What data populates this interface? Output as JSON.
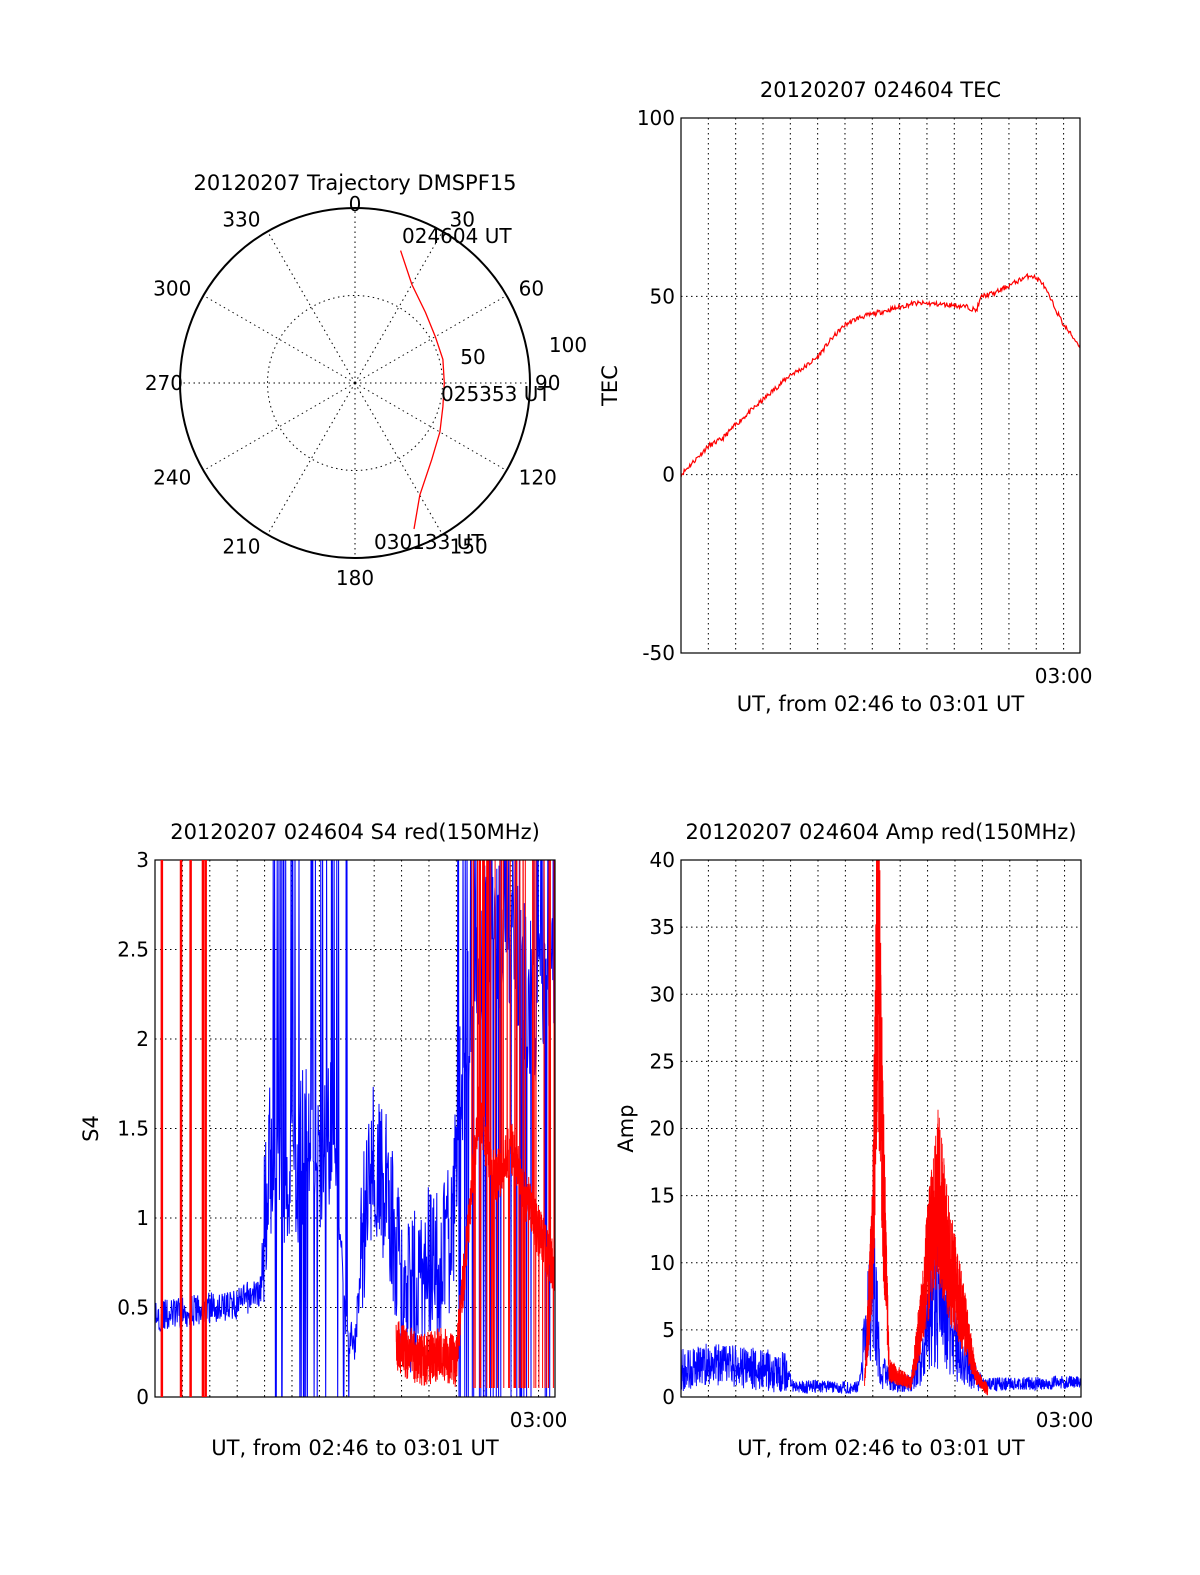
{
  "chart_data": [
    {
      "type": "polar",
      "id": "trajectory",
      "title": "20120207 Trajectory DMSPF15",
      "angle_labels": [
        "0",
        "30",
        "60",
        "90",
        "120",
        "150",
        "180",
        "210",
        "240",
        "270",
        "300",
        "330"
      ],
      "radius_labels": [
        "50",
        "100"
      ],
      "rlim": [
        0,
        100
      ],
      "series": [
        {
          "color": "#ff0000",
          "points": [
            {
              "az": 19,
              "r": 80
            },
            {
              "az": 30,
              "r": 65
            },
            {
              "az": 45,
              "r": 57
            },
            {
              "az": 60,
              "r": 53
            },
            {
              "az": 75,
              "r": 52
            },
            {
              "az": 90,
              "r": 51
            },
            {
              "az": 105,
              "r": 52
            },
            {
              "az": 120,
              "r": 56
            },
            {
              "az": 135,
              "r": 62
            },
            {
              "az": 150,
              "r": 74
            },
            {
              "az": 158,
              "r": 90
            }
          ]
        }
      ],
      "annotations": [
        {
          "text": "024604 UT",
          "az": 19,
          "r": 80
        },
        {
          "text": "025353 UT",
          "az": 90,
          "r": 51
        },
        {
          "text": "030133 UT",
          "az": 158,
          "r": 90
        }
      ]
    },
    {
      "type": "line",
      "id": "tec",
      "title": "20120207 024604 TEC",
      "ylabel": "TEC",
      "xlabel": "UT, from 02:46 to 03:01 UT",
      "x_tick_labels": [
        "03:00"
      ],
      "ylim": [
        -50,
        100
      ],
      "yticks": [
        -50,
        0,
        50,
        100
      ],
      "grid": true,
      "series": [
        {
          "color": "#ff0000",
          "points": [
            [
              0,
              0
            ],
            [
              0.5,
              4
            ],
            [
              1,
              8
            ],
            [
              1.5,
              10
            ],
            [
              2,
              14
            ],
            [
              3,
              21
            ],
            [
              4,
              28
            ],
            [
              4.5,
              30
            ],
            [
              5,
              33
            ],
            [
              5.5,
              38
            ],
            [
              6,
              42
            ],
            [
              6.5,
              44
            ],
            [
              7,
              45
            ],
            [
              8,
              47
            ],
            [
              8.5,
              48
            ],
            [
              9,
              48
            ],
            [
              10,
              47.5
            ],
            [
              10.5,
              47
            ],
            [
              10.8,
              46
            ],
            [
              11,
              50
            ],
            [
              11.5,
              51
            ],
            [
              12,
              53
            ],
            [
              12.5,
              55
            ],
            [
              12.8,
              56
            ],
            [
              13.2,
              54
            ],
            [
              13.6,
              48
            ],
            [
              14,
              42
            ],
            [
              14.6,
              36
            ]
          ]
        }
      ]
    },
    {
      "type": "line",
      "id": "s4",
      "title": "20120207 024604 S4 red(150MHz)",
      "ylabel": "S4",
      "xlabel": "UT, from 02:46 to 03:01 UT",
      "x_tick_labels": [
        "03:00"
      ],
      "ylim": [
        0,
        3
      ],
      "yticks": [
        "0",
        "0.5",
        "1",
        "1.5",
        "2",
        "2.5",
        "3"
      ],
      "grid": true,
      "series": [
        {
          "color": "#0000ff",
          "points": [
            [
              0,
              0.45
            ],
            [
              1,
              0.47
            ],
            [
              2,
              0.5
            ],
            [
              3,
              0.52
            ],
            [
              3.9,
              0.6
            ],
            [
              4.1,
              1.3
            ],
            [
              4.5,
              1.4
            ],
            [
              4.9,
              1.2
            ],
            [
              5.3,
              1.3
            ],
            [
              5.6,
              1.6
            ],
            [
              6,
              1.2
            ],
            [
              6.5,
              1.5
            ],
            [
              7,
              0.35
            ],
            [
              7.3,
              0.3
            ],
            [
              7.6,
              0.9
            ],
            [
              8,
              1.4
            ],
            [
              8.5,
              1.1
            ],
            [
              9,
              0.6
            ],
            [
              9.3,
              0.55
            ],
            [
              9.8,
              0.7
            ],
            [
              10.2,
              0.75
            ],
            [
              10.8,
              0.85
            ],
            [
              11.2,
              1.8
            ],
            [
              11.6,
              2.4
            ],
            [
              12.2,
              2.6
            ],
            [
              13,
              2.5
            ],
            [
              13.8,
              2.2
            ],
            [
              14.6,
              2.3
            ]
          ]
        },
        {
          "color": "#ff0000",
          "points": [
            [
              8.8,
              0.3
            ],
            [
              9.2,
              0.25
            ],
            [
              9.8,
              0.2
            ],
            [
              10.4,
              0.25
            ],
            [
              11,
              0.2
            ],
            [
              11.4,
              0.9
            ],
            [
              11.8,
              1.6
            ],
            [
              12.4,
              1.2
            ],
            [
              13,
              1.4
            ],
            [
              13.8,
              1.0
            ],
            [
              14.6,
              0.7
            ]
          ]
        }
      ]
    },
    {
      "type": "line",
      "id": "amp",
      "title": "20120207 024604 Amp red(150MHz)",
      "ylabel": "Amp",
      "xlabel": "UT, from 02:46 to 03:01 UT",
      "x_tick_labels": [
        "03:00"
      ],
      "ylim": [
        0,
        40
      ],
      "yticks": [
        0,
        5,
        10,
        15,
        20,
        25,
        30,
        35,
        40
      ],
      "grid": true,
      "series": [
        {
          "color": "#0000ff",
          "points": [
            [
              0,
              2
            ],
            [
              1,
              2.5
            ],
            [
              2,
              2.3
            ],
            [
              3,
              2
            ],
            [
              3.9,
              1.8
            ],
            [
              4.1,
              0.7
            ],
            [
              5,
              0.8
            ],
            [
              6,
              0.7
            ],
            [
              6.5,
              0.8
            ],
            [
              6.7,
              4
            ],
            [
              7,
              10
            ],
            [
              7.3,
              2
            ],
            [
              7.8,
              0.8
            ],
            [
              8.4,
              1.2
            ],
            [
              8.8,
              3
            ],
            [
              9.2,
              7
            ],
            [
              9.6,
              7
            ],
            [
              10,
              4
            ],
            [
              10.6,
              2
            ],
            [
              11,
              0.9
            ],
            [
              12,
              1
            ],
            [
              13,
              1
            ],
            [
              14,
              1.1
            ],
            [
              14.6,
              1.2
            ]
          ]
        },
        {
          "color": "#ff0000",
          "points": [
            [
              6.7,
              1
            ],
            [
              7,
              12
            ],
            [
              7.2,
              36
            ],
            [
              7.35,
              18
            ],
            [
              7.6,
              2
            ],
            [
              8.4,
              1
            ],
            [
              8.7,
              5
            ],
            [
              9,
              10
            ],
            [
              9.4,
              15
            ],
            [
              9.8,
              10
            ],
            [
              10.3,
              6
            ],
            [
              10.8,
              1.5
            ],
            [
              11.2,
              0.5
            ]
          ]
        }
      ]
    }
  ]
}
